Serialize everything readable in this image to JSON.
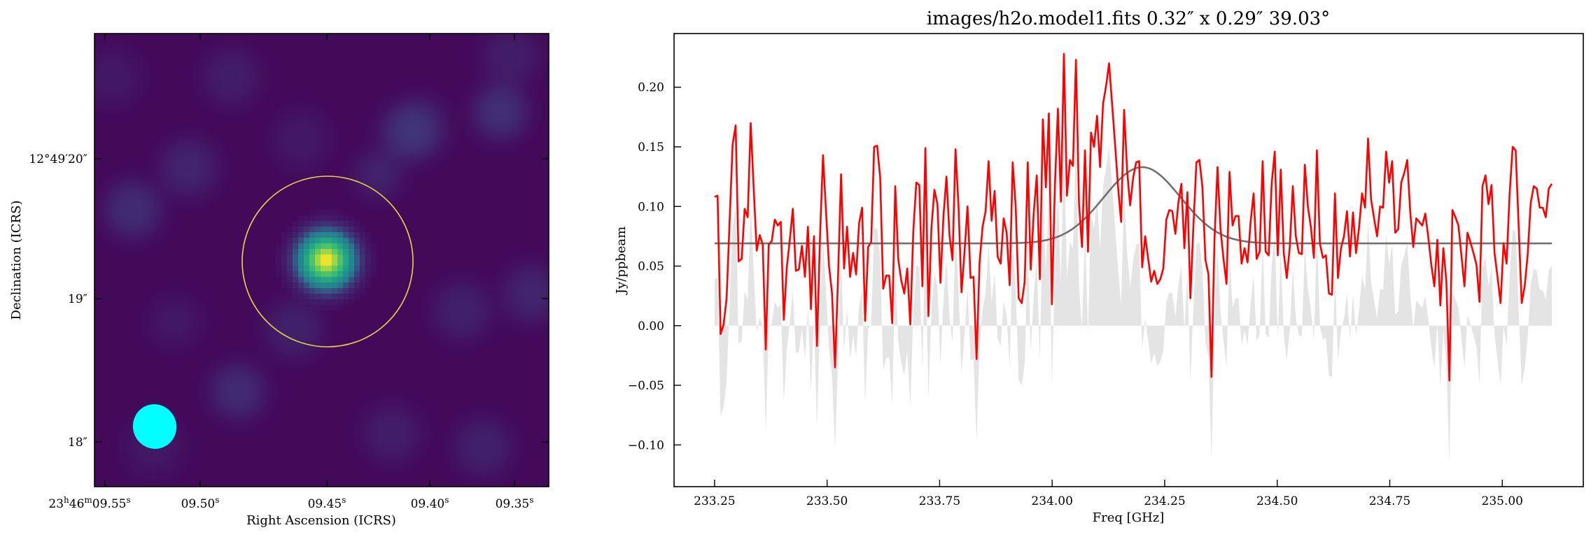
{
  "chart_data": [
    {
      "type": "heatmap",
      "xlabel": "Right Ascension (ICRS)",
      "ylabel": "Declination (ICRS)",
      "x_tick_labels": [
        "23h46m09.55s",
        "09.50s",
        "09.45s",
        "09.40s",
        "09.35s"
      ],
      "y_tick_labels": [
        "12°49′20″",
        "19″",
        "18″"
      ],
      "colormap": "viridis",
      "colors": {
        "aperture": "#e8d44d",
        "beam": "#00ffff"
      },
      "features": {
        "source": {
          "label": "bright point source",
          "peak": 1.0
        },
        "aperture": {
          "shape": "circle"
        },
        "beam": {
          "shape": "ellipse"
        }
      }
    },
    {
      "type": "line",
      "title": "images/h2o.model1.fits 0.32″ x 0.29″ 39.03°",
      "xlabel": "Freq [GHz]",
      "ylabel": "Jy/ppbeam",
      "xlim": [
        233.16,
        235.18
      ],
      "ylim": [
        -0.135,
        0.245
      ],
      "x_ticks": [
        233.25,
        233.5,
        233.75,
        234.0,
        234.25,
        234.5,
        234.75,
        235.0
      ],
      "x_tick_labels": [
        "233.25",
        "233.50",
        "233.75",
        "234.00",
        "234.25",
        "234.50",
        "234.75",
        "235.00"
      ],
      "y_ticks": [
        -0.1,
        -0.05,
        0.0,
        0.05,
        0.1,
        0.15,
        0.2
      ],
      "y_tick_labels": [
        "−0.10",
        "−0.05",
        "0.00",
        "0.05",
        "0.10",
        "0.15",
        "0.20"
      ],
      "colors": {
        "data": "#ff0000",
        "model": "#707070",
        "residual": "#e4e4e4"
      },
      "series": [
        {
          "role": "spectrum",
          "x_start": 233.25,
          "x_end": 235.11,
          "values": [
            0.108,
            0.109,
            -0.007,
            0.001,
            0.023,
            0.088,
            0.152,
            0.168,
            0.054,
            0.056,
            0.098,
            0.091,
            0.17,
            0.115,
            0.063,
            0.076,
            0.068,
            -0.02,
            0.068,
            0.071,
            0.089,
            0.084,
            0.087,
            0.005,
            0.049,
            0.072,
            0.098,
            0.046,
            0.047,
            0.067,
            0.041,
            0.083,
            0.014,
            0.075,
            -0.017,
            0.074,
            0.143,
            0.096,
            0.05,
            0.027,
            -0.035,
            0.041,
            0.127,
            0.048,
            0.083,
            0.041,
            0.061,
            0.043,
            0.086,
            0.099,
            0.004,
            0.066,
            0.07,
            0.15,
            0.151,
            0.124,
            0.031,
            0.042,
            0.042,
            0.002,
            0.117,
            0.056,
            0.038,
            0.027,
            0.048,
            0.001,
            0.079,
            0.12,
            0.118,
            0.033,
            0.149,
            0.008,
            0.082,
            0.114,
            0.102,
            0.036,
            0.092,
            0.125,
            0.076,
            0.055,
            0.148,
            0.1,
            0.028,
            0.062,
            0.1,
            0.04,
            0.041,
            -0.028,
            0.053,
            0.083,
            0.096,
            0.138,
            0.088,
            0.113,
            0.058,
            0.052,
            0.09,
            0.078,
            0.034,
            0.137,
            0.1,
            0.023,
            0.019,
            0.037,
            0.137,
            0.047,
            0.095,
            0.126,
            0.039,
            0.173,
            0.116,
            0.178,
            0.018,
            0.117,
            0.182,
            0.104,
            0.228,
            0.109,
            0.139,
            0.134,
            0.223,
            0.103,
            0.066,
            0.147,
            0.062,
            0.162,
            0.15,
            0.176,
            0.133,
            0.186,
            0.201,
            0.22,
            0.186,
            0.152,
            0.116,
            0.087,
            0.181,
            0.13,
            0.101,
            0.124,
            0.137,
            0.138,
            0.049,
            0.075,
            0.056,
            0.037,
            0.046,
            0.035,
            0.039,
            0.048,
            0.089,
            0.097,
            0.096,
            0.077,
            0.103,
            0.119,
            0.065,
            0.112,
            0.023,
            0.084,
            0.137,
            0.139,
            0.116,
            0.055,
            0.043,
            -0.043,
            0.072,
            0.133,
            0.081,
            0.056,
            0.035,
            0.129,
            0.084,
            0.092,
            0.092,
            0.052,
            0.065,
            0.053,
            0.087,
            0.111,
            0.056,
            0.062,
            0.138,
            0.062,
            0.059,
            0.119,
            0.146,
            0.059,
            0.131,
            0.061,
            0.04,
            0.066,
            0.117,
            0.075,
            0.061,
            0.06,
            0.135,
            0.1,
            0.083,
            0.057,
            0.147,
            0.069,
            0.057,
            0.059,
            0.027,
            0.026,
            0.111,
            0.04,
            0.065,
            0.075,
            0.096,
            0.058,
            0.095,
            0.061,
            0.082,
            0.111,
            0.099,
            0.157,
            0.106,
            0.09,
            0.075,
            0.1,
            0.099,
            0.146,
            0.12,
            0.138,
            0.078,
            0.081,
            0.12,
            0.128,
            0.139,
            0.095,
            0.066,
            0.09,
            0.087,
            0.084,
            0.094,
            0.074,
            0.051,
            0.033,
            0.072,
            0.017,
            0.065,
            0.037,
            -0.046,
            0.097,
            0.091,
            0.084,
            0.059,
            0.033,
            0.078,
            0.07,
            0.061,
            0.051,
            0.02,
            0.117,
            0.126,
            0.102,
            0.118,
            0.061,
            0.041,
            0.019,
            0.069,
            0.052,
            0.11,
            0.15,
            0.147,
            0.083,
            0.019,
            0.033,
            0.06,
            0.103,
            0.117,
            0.115,
            0.099,
            0.099,
            0.091,
            0.115,
            0.119
          ]
        },
        {
          "role": "model",
          "profile": "gaussian",
          "baseline": 0.069,
          "amplitude": 0.064,
          "center": 234.2,
          "sigma": 0.085,
          "x_start": 233.25,
          "x_end": 235.11
        },
        {
          "role": "residual",
          "x_start": 233.25,
          "x_end": 235.11,
          "values": [
            0.039,
            0.04,
            -0.076,
            -0.068,
            -0.046,
            0.019,
            0.083,
            0.099,
            -0.015,
            -0.013,
            0.029,
            0.022,
            0.101,
            0.046,
            -0.006,
            0.007,
            -0.001,
            -0.089,
            -0.001,
            0.002,
            0.02,
            0.015,
            0.018,
            -0.064,
            -0.02,
            0.003,
            0.029,
            -0.023,
            -0.022,
            -0.002,
            -0.028,
            0.014,
            -0.055,
            0.006,
            -0.086,
            0.005,
            0.074,
            0.027,
            -0.019,
            -0.042,
            -0.104,
            -0.028,
            0.058,
            -0.021,
            0.014,
            -0.028,
            -0.008,
            -0.026,
            0.017,
            0.03,
            -0.065,
            -0.003,
            0.001,
            0.081,
            0.082,
            0.055,
            -0.038,
            -0.027,
            -0.027,
            -0.067,
            0.048,
            -0.013,
            -0.031,
            -0.042,
            -0.021,
            -0.068,
            0.01,
            0.051,
            0.049,
            -0.036,
            0.08,
            -0.061,
            0.013,
            0.045,
            0.033,
            -0.033,
            0.023,
            0.056,
            0.007,
            -0.014,
            0.079,
            0.031,
            -0.041,
            -0.007,
            0.031,
            -0.029,
            -0.028,
            -0.097,
            -0.016,
            0.014,
            0.027,
            0.069,
            0.019,
            0.044,
            -0.011,
            -0.017,
            0.021,
            0.009,
            -0.035,
            0.068,
            0.031,
            -0.046,
            -0.05,
            -0.032,
            0.068,
            -0.022,
            0.026,
            0.057,
            -0.03,
            0.104,
            0.047,
            0.109,
            -0.051,
            0.048,
            0.113,
            0.035,
            0.159,
            0.04,
            0.07,
            0.065,
            0.154,
            0.034,
            -0.003,
            0.078,
            -0.007,
            0.093,
            0.081,
            0.107,
            0.064,
            0.117,
            0.132,
            0.151,
            0.117,
            0.083,
            0.047,
            0.018,
            0.112,
            0.061,
            0.032,
            0.055,
            0.068,
            0.069,
            -0.02,
            0.006,
            -0.013,
            -0.032,
            -0.023,
            -0.034,
            -0.03,
            -0.021,
            0.02,
            0.028,
            0.027,
            0.008,
            0.034,
            0.05,
            -0.004,
            0.043,
            -0.046,
            0.015,
            0.068,
            0.07,
            0.047,
            -0.014,
            -0.026,
            -0.112,
            0.003,
            0.064,
            0.012,
            -0.013,
            -0.034,
            0.06,
            0.015,
            0.023,
            0.023,
            -0.017,
            -0.004,
            -0.016,
            0.018,
            0.042,
            -0.013,
            -0.007,
            0.069,
            -0.007,
            -0.01,
            0.05,
            0.077,
            -0.01,
            0.062,
            -0.008,
            -0.029,
            -0.003,
            0.048,
            0.006,
            -0.008,
            -0.009,
            0.066,
            0.031,
            0.014,
            -0.012,
            0.078,
            0.0,
            -0.012,
            -0.01,
            -0.042,
            -0.043,
            0.042,
            -0.029,
            -0.004,
            0.006,
            0.027,
            -0.011,
            0.026,
            -0.008,
            0.013,
            0.042,
            0.03,
            0.088,
            0.037,
            0.021,
            0.006,
            0.031,
            0.03,
            0.077,
            0.051,
            0.069,
            0.009,
            0.012,
            0.051,
            0.059,
            0.07,
            0.026,
            -0.003,
            0.021,
            0.018,
            0.015,
            0.025,
            0.005,
            -0.018,
            -0.036,
            0.003,
            -0.052,
            -0.004,
            -0.032,
            -0.115,
            0.028,
            0.022,
            0.015,
            -0.01,
            -0.036,
            0.009,
            0.001,
            -0.008,
            -0.018,
            -0.049,
            0.048,
            0.057,
            0.033,
            0.049,
            -0.008,
            -0.028,
            -0.05,
            0.0,
            -0.017,
            0.041,
            0.081,
            0.078,
            0.014,
            -0.05,
            -0.036,
            -0.009,
            0.034,
            0.048,
            0.046,
            0.03,
            0.03,
            0.022,
            0.046,
            0.05
          ]
        }
      ]
    }
  ]
}
